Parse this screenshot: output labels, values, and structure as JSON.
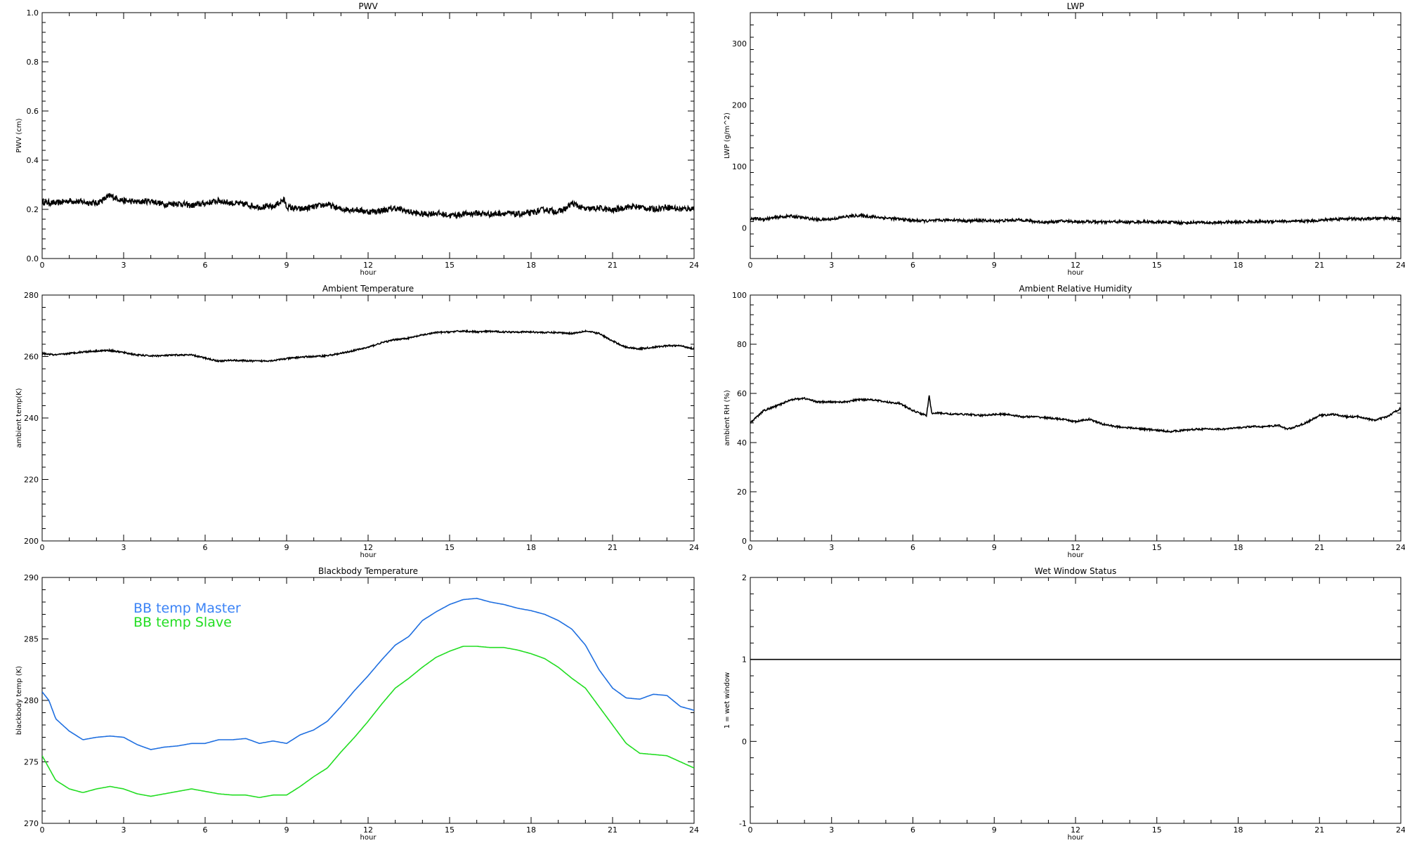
{
  "chart_data": [
    {
      "id": "pwv",
      "type": "line",
      "title": "PWV",
      "xlabel": "hour",
      "ylabel": "PWV (cm)",
      "xlim": [
        0,
        24
      ],
      "ylim": [
        0,
        1.0
      ],
      "x_ticks": [
        0,
        3,
        6,
        9,
        12,
        15,
        18,
        21,
        24
      ],
      "y_ticks": [
        0.0,
        0.2,
        0.4,
        0.6,
        0.8,
        1.0
      ],
      "y_tick_labels": [
        "0.0",
        "0.2",
        "0.4",
        "0.6",
        "0.8",
        "1.0"
      ],
      "noise": 0.012,
      "series": [
        {
          "color": "#000000",
          "x": [
            0,
            0.5,
            1,
            1.5,
            2,
            2.5,
            3,
            3.5,
            4,
            4.5,
            5,
            5.5,
            6,
            6.5,
            7,
            7.5,
            8,
            8.5,
            8.9,
            9,
            9.5,
            10,
            10.5,
            11,
            11.5,
            12,
            12.5,
            13,
            13.5,
            14,
            14.5,
            15,
            15.5,
            16,
            16.5,
            17,
            17.5,
            18,
            18.5,
            19,
            19.3,
            19.5,
            20,
            20.5,
            21,
            21.5,
            22,
            22.5,
            23,
            23.5,
            24
          ],
          "y": [
            0.23,
            0.225,
            0.235,
            0.23,
            0.225,
            0.255,
            0.235,
            0.23,
            0.235,
            0.22,
            0.225,
            0.215,
            0.225,
            0.235,
            0.225,
            0.22,
            0.21,
            0.21,
            0.24,
            0.21,
            0.2,
            0.21,
            0.22,
            0.2,
            0.2,
            0.19,
            0.195,
            0.205,
            0.19,
            0.18,
            0.185,
            0.175,
            0.18,
            0.185,
            0.18,
            0.185,
            0.18,
            0.185,
            0.2,
            0.19,
            0.205,
            0.225,
            0.2,
            0.205,
            0.195,
            0.21,
            0.21,
            0.2,
            0.21,
            0.2,
            0.205
          ]
        }
      ]
    },
    {
      "id": "lwp",
      "type": "line",
      "title": "LWP",
      "xlabel": "hour",
      "ylabel": "LWP (g/m^2)",
      "xlim": [
        0,
        24
      ],
      "ylim": [
        -50,
        350
      ],
      "x_ticks": [
        0,
        3,
        6,
        9,
        12,
        15,
        18,
        21,
        24
      ],
      "y_ticks": [
        0,
        100,
        200,
        300
      ],
      "y_tick_labels": [
        "0",
        "100",
        "200",
        "300"
      ],
      "noise": 2.2,
      "series": [
        {
          "color": "#000000",
          "x": [
            0,
            0.5,
            1,
            1.5,
            2,
            2.5,
            3,
            3.5,
            4,
            4.5,
            5,
            5.5,
            6,
            6.5,
            7,
            7.5,
            8,
            8.5,
            9,
            9.5,
            10,
            10.5,
            11,
            11.5,
            12,
            12.5,
            13,
            13.5,
            14,
            14.5,
            15,
            15.5,
            16,
            16.5,
            17,
            17.5,
            18,
            18.5,
            19,
            19.5,
            20,
            20.5,
            21,
            21.5,
            22,
            22.5,
            23,
            23.5,
            24
          ],
          "y": [
            15,
            14,
            17,
            19,
            16,
            13,
            14,
            18,
            20,
            18,
            16,
            14,
            12,
            11,
            12,
            13,
            11,
            12,
            11,
            12,
            13,
            10,
            9,
            11,
            10,
            10,
            9,
            10,
            9,
            10,
            9,
            9,
            8,
            9,
            8,
            9,
            9,
            10,
            10,
            11,
            10,
            11,
            12,
            14,
            15,
            14,
            15,
            16,
            14
          ]
        }
      ]
    },
    {
      "id": "ambient-temp",
      "type": "line",
      "title": "Ambient Temperature",
      "xlabel": "hour",
      "ylabel": "ambient temp(K)",
      "xlim": [
        0,
        24
      ],
      "ylim": [
        200,
        280
      ],
      "x_ticks": [
        0,
        3,
        6,
        9,
        12,
        15,
        18,
        21,
        24
      ],
      "y_ticks": [
        200,
        220,
        240,
        260,
        280
      ],
      "y_tick_labels": [
        "200",
        "220",
        "240",
        "260",
        "280"
      ],
      "noise": 0.25,
      "series": [
        {
          "color": "#000000",
          "x": [
            0,
            0.5,
            1,
            1.5,
            2,
            2.5,
            3,
            3.5,
            4,
            4.5,
            5,
            5.5,
            6,
            6.5,
            7,
            7.5,
            8,
            8.5,
            9,
            9.5,
            10,
            10.5,
            11,
            11.5,
            12,
            12.5,
            13,
            13.5,
            14,
            14.5,
            15,
            15.5,
            16,
            16.5,
            17,
            17.5,
            18,
            18.5,
            19,
            19.5,
            20,
            20.5,
            21,
            21.5,
            22,
            22.5,
            23,
            23.5,
            24
          ],
          "y": [
            261,
            260.5,
            261,
            261.5,
            261.8,
            262,
            261.3,
            260.5,
            260.2,
            260.3,
            260.5,
            260.5,
            259.5,
            258.5,
            258.8,
            258.6,
            258.5,
            258.7,
            259.3,
            259.8,
            260,
            260.3,
            261,
            262,
            263,
            264.5,
            265.5,
            266,
            267,
            267.8,
            268,
            268.3,
            268,
            268.2,
            268,
            268,
            268,
            267.8,
            267.8,
            267.5,
            268.3,
            267.5,
            265,
            263,
            262.5,
            263,
            263.5,
            263.5,
            262.5
          ]
        }
      ]
    },
    {
      "id": "ambient-rh",
      "type": "line",
      "title": "Ambient Relative Humidity",
      "xlabel": "hour",
      "ylabel": "ambient RH (%)",
      "xlim": [
        0,
        24
      ],
      "ylim": [
        0,
        100
      ],
      "x_ticks": [
        0,
        3,
        6,
        9,
        12,
        15,
        18,
        21,
        24
      ],
      "y_ticks": [
        0,
        20,
        40,
        60,
        80,
        100
      ],
      "y_tick_labels": [
        "0",
        "20",
        "40",
        "60",
        "80",
        "100"
      ],
      "noise": 0.35,
      "series": [
        {
          "color": "#000000",
          "x": [
            0,
            0.3,
            0.5,
            1,
            1.5,
            2,
            2.5,
            3,
            3.5,
            4,
            4.5,
            5,
            5.5,
            6,
            6.5,
            6.55,
            6.6,
            6.65,
            6.7,
            7,
            7.5,
            8,
            8.5,
            9,
            9.5,
            10,
            10.5,
            11,
            11.5,
            12,
            12.5,
            13,
            13.5,
            14,
            14.5,
            15,
            15.5,
            16,
            16.5,
            17,
            17.5,
            18,
            18.5,
            19,
            19.5,
            19.8,
            20,
            20.5,
            21,
            21.5,
            22,
            22.5,
            23,
            23.5,
            24
          ],
          "y": [
            48,
            51,
            53,
            55,
            57.5,
            58,
            56.5,
            56.5,
            56.5,
            57.5,
            57.5,
            56.5,
            56,
            53,
            51,
            55,
            59,
            55,
            52,
            52,
            51.5,
            51.5,
            51,
            51.5,
            51.5,
            50.5,
            50.5,
            50,
            49.5,
            48.5,
            49.5,
            47.5,
            46.5,
            46,
            45.5,
            45,
            44.5,
            45,
            45.5,
            45.5,
            45.5,
            46,
            46.5,
            46.5,
            47,
            45.5,
            46,
            48,
            51,
            51.5,
            50.5,
            50.5,
            49,
            50.5,
            54
          ]
        }
      ]
    },
    {
      "id": "blackbody-temp",
      "type": "line",
      "title": "Blackbody Temperature",
      "xlabel": "hour",
      "ylabel": "blackbody temp (K)",
      "xlim": [
        0,
        24
      ],
      "ylim": [
        270,
        290
      ],
      "x_ticks": [
        0,
        3,
        6,
        9,
        12,
        15,
        18,
        21,
        24
      ],
      "y_ticks": [
        270,
        275,
        280,
        285,
        290
      ],
      "y_tick_labels": [
        "270",
        "275",
        "280",
        "285",
        "290"
      ],
      "noise": 0,
      "legend": [
        {
          "label": "BB temp Master",
          "color": "#3b83f6"
        },
        {
          "label": "BB temp Slave",
          "color": "#22dd22"
        }
      ],
      "series": [
        {
          "name": "BB temp Master",
          "color": "#1f6fe0",
          "x": [
            0,
            0.25,
            0.5,
            1,
            1.5,
            2,
            2.5,
            3,
            3.5,
            4,
            4.5,
            5,
            5.5,
            6,
            6.5,
            7,
            7.5,
            8,
            8.5,
            9,
            9.5,
            10,
            10.5,
            11,
            11.5,
            12,
            12.5,
            13,
            13.5,
            14,
            14.5,
            15,
            15.5,
            16,
            16.5,
            17,
            17.5,
            18,
            18.5,
            19,
            19.5,
            20,
            20.5,
            21,
            21.5,
            22,
            22.5,
            23,
            23.5,
            24
          ],
          "y": [
            280.7,
            280,
            278.5,
            277.5,
            276.8,
            277,
            277.1,
            277,
            276.4,
            276,
            276.2,
            276.3,
            276.5,
            276.5,
            276.8,
            276.8,
            276.9,
            276.5,
            276.7,
            276.5,
            277.2,
            277.6,
            278.3,
            279.5,
            280.8,
            282,
            283.3,
            284.5,
            285.2,
            286.5,
            287.2,
            287.8,
            288.2,
            288.3,
            288,
            287.8,
            287.5,
            287.3,
            287,
            286.5,
            285.8,
            284.5,
            282.5,
            281,
            280.2,
            280.1,
            280.5,
            280.4,
            279.5,
            279.2
          ]
        },
        {
          "name": "BB temp Slave",
          "color": "#22dd22",
          "x": [
            0,
            0.25,
            0.5,
            1,
            1.5,
            2,
            2.5,
            3,
            3.5,
            4,
            4.5,
            5,
            5.5,
            6,
            6.5,
            7,
            7.5,
            8,
            8.5,
            9,
            9.5,
            10,
            10.5,
            11,
            11.5,
            12,
            12.5,
            13,
            13.5,
            14,
            14.5,
            15,
            15.5,
            16,
            16.5,
            17,
            17.5,
            18,
            18.5,
            19,
            19.5,
            20,
            20.5,
            21,
            21.5,
            22,
            22.5,
            23,
            23.5,
            24
          ],
          "y": [
            275.5,
            274.5,
            273.5,
            272.8,
            272.5,
            272.8,
            273,
            272.8,
            272.4,
            272.2,
            272.4,
            272.6,
            272.8,
            272.6,
            272.4,
            272.3,
            272.3,
            272.1,
            272.3,
            272.3,
            273,
            273.8,
            274.5,
            275.8,
            277,
            278.3,
            279.7,
            281,
            281.8,
            282.7,
            283.5,
            284,
            284.4,
            284.4,
            284.3,
            284.3,
            284.1,
            283.8,
            283.4,
            282.7,
            281.8,
            281,
            279.5,
            278,
            276.5,
            275.7,
            275.6,
            275.5,
            275,
            274.5
          ]
        }
      ]
    },
    {
      "id": "wet-window",
      "type": "line",
      "title": "Wet Window Status",
      "xlabel": "hour",
      "ylabel": "1 = wet window",
      "xlim": [
        0,
        24
      ],
      "ylim": [
        -1,
        2
      ],
      "x_ticks": [
        0,
        3,
        6,
        9,
        12,
        15,
        18,
        21,
        24
      ],
      "y_ticks": [
        -1,
        0,
        1,
        2
      ],
      "y_tick_labels": [
        "-1",
        "0",
        "1",
        "2"
      ],
      "noise": 0,
      "series": [
        {
          "color": "#000000",
          "x": [
            0,
            24
          ],
          "y": [
            1,
            1
          ]
        }
      ]
    }
  ]
}
